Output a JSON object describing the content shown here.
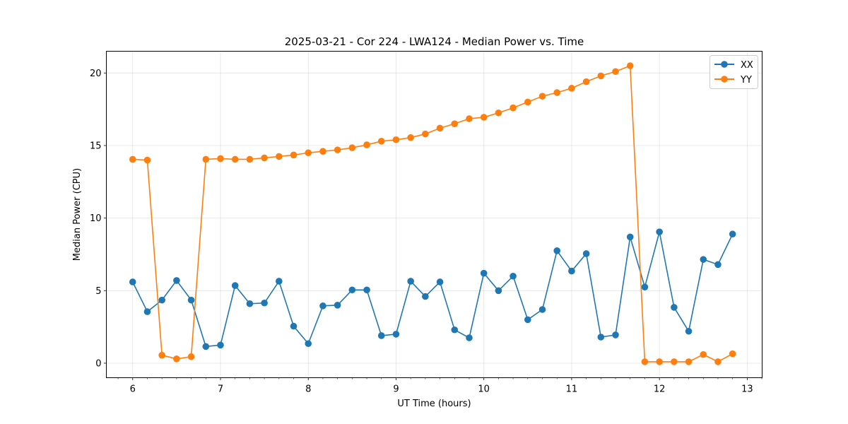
{
  "chart_data": {
    "type": "line",
    "title": "2025-03-21 - Cor 224 - LWA124 - Median Power vs. Time",
    "xlabel": "UT Time (hours)",
    "ylabel": "Median Power (CPU)",
    "xlim": [
      5.7,
      13.17
    ],
    "ylim": [
      -1.0,
      21.5
    ],
    "xticks": [
      6,
      7,
      8,
      9,
      10,
      11,
      12,
      13
    ],
    "yticks": [
      0,
      5,
      10,
      15,
      20
    ],
    "xtick_labels": [
      "6",
      "7",
      "8",
      "9",
      "10",
      "11",
      "12",
      "13"
    ],
    "ytick_labels": [
      "0",
      "5",
      "10",
      "15",
      "20"
    ],
    "grid": true,
    "legend_position": "top-right",
    "x": [
      6.0,
      6.1667,
      6.3333,
      6.5,
      6.6667,
      6.8333,
      7.0,
      7.1667,
      7.3333,
      7.5,
      7.6667,
      7.8333,
      8.0,
      8.1667,
      8.3333,
      8.5,
      8.6667,
      8.8333,
      9.0,
      9.1667,
      9.3333,
      9.5,
      9.6667,
      9.8333,
      10.0,
      10.1667,
      10.3333,
      10.5,
      10.6667,
      10.8333,
      11.0,
      11.1667,
      11.3333,
      11.5,
      11.6667,
      11.8333,
      12.0,
      12.1667,
      12.3333,
      12.5,
      12.6667,
      12.8333
    ],
    "series": [
      {
        "name": "XX",
        "color": "#1f77b4",
        "values": [
          5.6,
          3.55,
          4.35,
          5.7,
          4.35,
          1.15,
          1.25,
          5.35,
          4.1,
          4.15,
          5.65,
          2.55,
          1.35,
          3.95,
          4.0,
          5.05,
          5.05,
          1.9,
          2.0,
          5.65,
          4.6,
          5.6,
          2.3,
          1.75,
          6.2,
          5.0,
          6.0,
          3.0,
          3.7,
          7.75,
          6.35,
          7.55,
          1.8,
          1.95,
          8.7,
          5.25,
          9.05,
          3.85,
          2.2,
          7.15,
          6.8,
          8.9
        ]
      },
      {
        "name": "YY",
        "color": "#ff7f0e",
        "values": [
          14.05,
          14.0,
          0.55,
          0.3,
          0.45,
          14.05,
          14.1,
          14.05,
          14.05,
          14.15,
          14.25,
          14.35,
          14.5,
          14.6,
          14.7,
          14.85,
          15.05,
          15.3,
          15.4,
          15.55,
          15.8,
          16.2,
          16.5,
          16.85,
          16.95,
          17.25,
          17.6,
          18.0,
          18.4,
          18.65,
          18.95,
          19.4,
          19.8,
          20.1,
          20.5,
          0.1,
          0.1,
          0.1,
          0.1,
          0.6,
          0.1,
          0.65
        ]
      }
    ]
  }
}
